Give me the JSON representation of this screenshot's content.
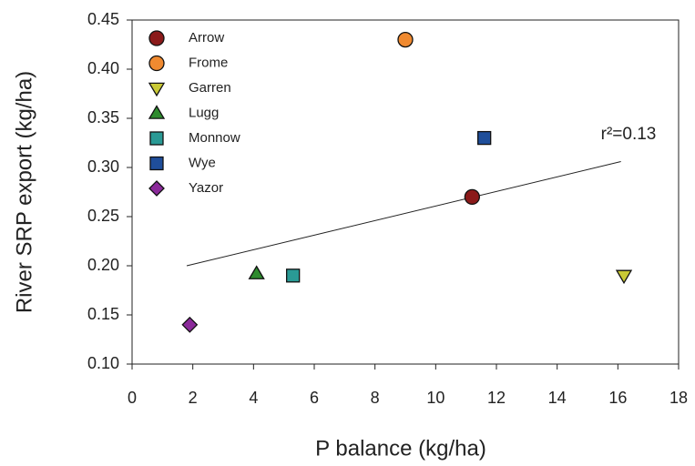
{
  "chart_data": {
    "type": "scatter",
    "xlabel": "P balance (kg/ha)",
    "ylabel": "River SRP export (kg/ha)",
    "xlim": [
      0,
      18
    ],
    "xticks": [
      0,
      2,
      4,
      6,
      8,
      10,
      12,
      14,
      16,
      18
    ],
    "ylim": [
      0.1,
      0.45
    ],
    "yticks": [
      {
        "value": 0.1,
        "label": "0.10"
      },
      0.15,
      {
        "value": 0.2,
        "label": "0.20"
      },
      0.25,
      {
        "value": 0.3,
        "label": "0.30"
      },
      0.35,
      {
        "value": 0.4,
        "label": "0.40"
      },
      0.45
    ],
    "legend": "upper left",
    "series": [
      {
        "name": "Arrow",
        "color": "#8b1a1a",
        "marker": "circle",
        "x": [
          11.2
        ],
        "values": [
          0.27
        ]
      },
      {
        "name": "Frome",
        "color": "#f08a30",
        "marker": "circle",
        "x": [
          9.0
        ],
        "values": [
          0.43
        ]
      },
      {
        "name": "Garren",
        "color": "#c9c935",
        "marker": "triangle-down",
        "x": [
          16.2
        ],
        "values": [
          0.19
        ]
      },
      {
        "name": "Lugg",
        "color": "#2e8b2e",
        "marker": "triangle-up",
        "x": [
          4.1
        ],
        "values": [
          0.192
        ]
      },
      {
        "name": "Monnow",
        "color": "#2a9a95",
        "marker": "square",
        "x": [
          5.3
        ],
        "values": [
          0.19
        ]
      },
      {
        "name": "Wye",
        "color": "#1f4e9a",
        "marker": "square",
        "x": [
          11.6
        ],
        "values": [
          0.33
        ]
      },
      {
        "name": "Yazor",
        "color": "#8b2a9a",
        "marker": "diamond",
        "x": [
          1.9
        ],
        "values": [
          0.14
        ]
      }
    ],
    "trendline": {
      "x": [
        1.8,
        16.1
      ],
      "y": [
        0.2,
        0.306
      ]
    },
    "annotation": "r²=0.13"
  }
}
